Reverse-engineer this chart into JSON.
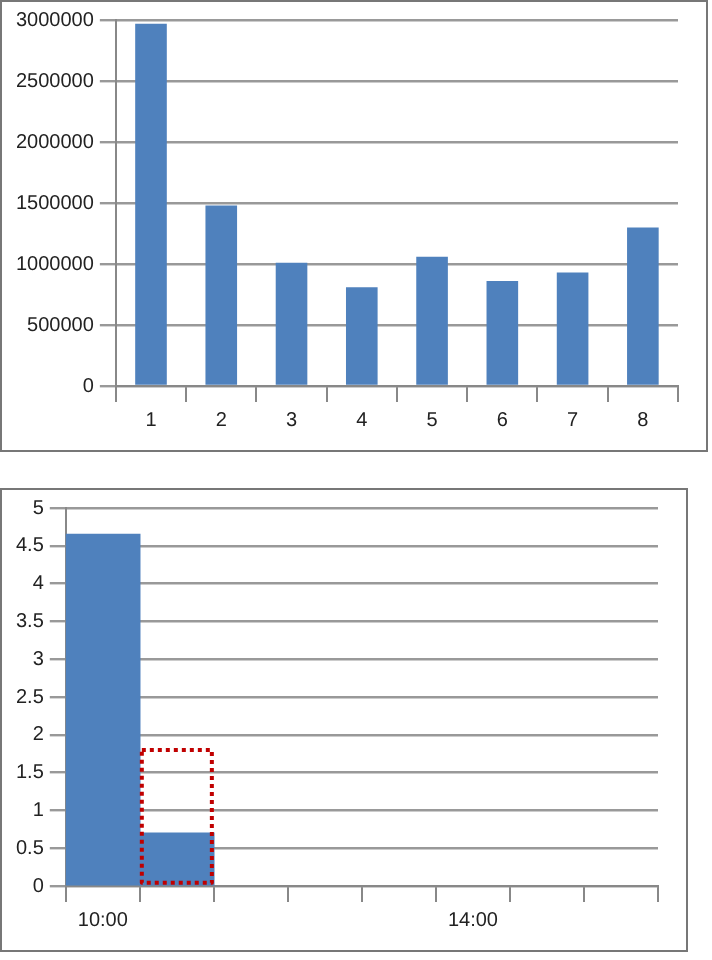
{
  "chart_data": [
    {
      "type": "bar",
      "categories": [
        "1",
        "2",
        "3",
        "4",
        "5",
        "6",
        "7",
        "8"
      ],
      "values": [
        2970000,
        1480000,
        1010000,
        810000,
        1060000,
        860000,
        930000,
        1300000
      ],
      "color": "#4f81bd",
      "ylim": [
        0,
        3000000
      ],
      "yticks": [
        0,
        500000,
        1000000,
        1500000,
        2000000,
        2500000,
        3000000
      ],
      "grid": "y",
      "legend": false
    },
    {
      "type": "bar",
      "categories": [
        "10:00",
        null,
        null,
        null,
        null,
        "14:00",
        null,
        null
      ],
      "series": [
        {
          "color": "#4f81bd",
          "values": [
            4.65,
            0.7,
            null,
            null,
            null,
            null,
            null,
            null
          ]
        },
        {
          "color": "#c00000",
          "line_style": "dotted",
          "values": [
            null,
            1.8,
            null,
            null,
            null,
            null,
            null,
            null
          ]
        }
      ],
      "ylim": [
        0,
        5
      ],
      "yticks": [
        0,
        0.5,
        1,
        1.5,
        2,
        2.5,
        3,
        3.5,
        4,
        4.5,
        5
      ],
      "grid": "y",
      "legend": false
    }
  ]
}
